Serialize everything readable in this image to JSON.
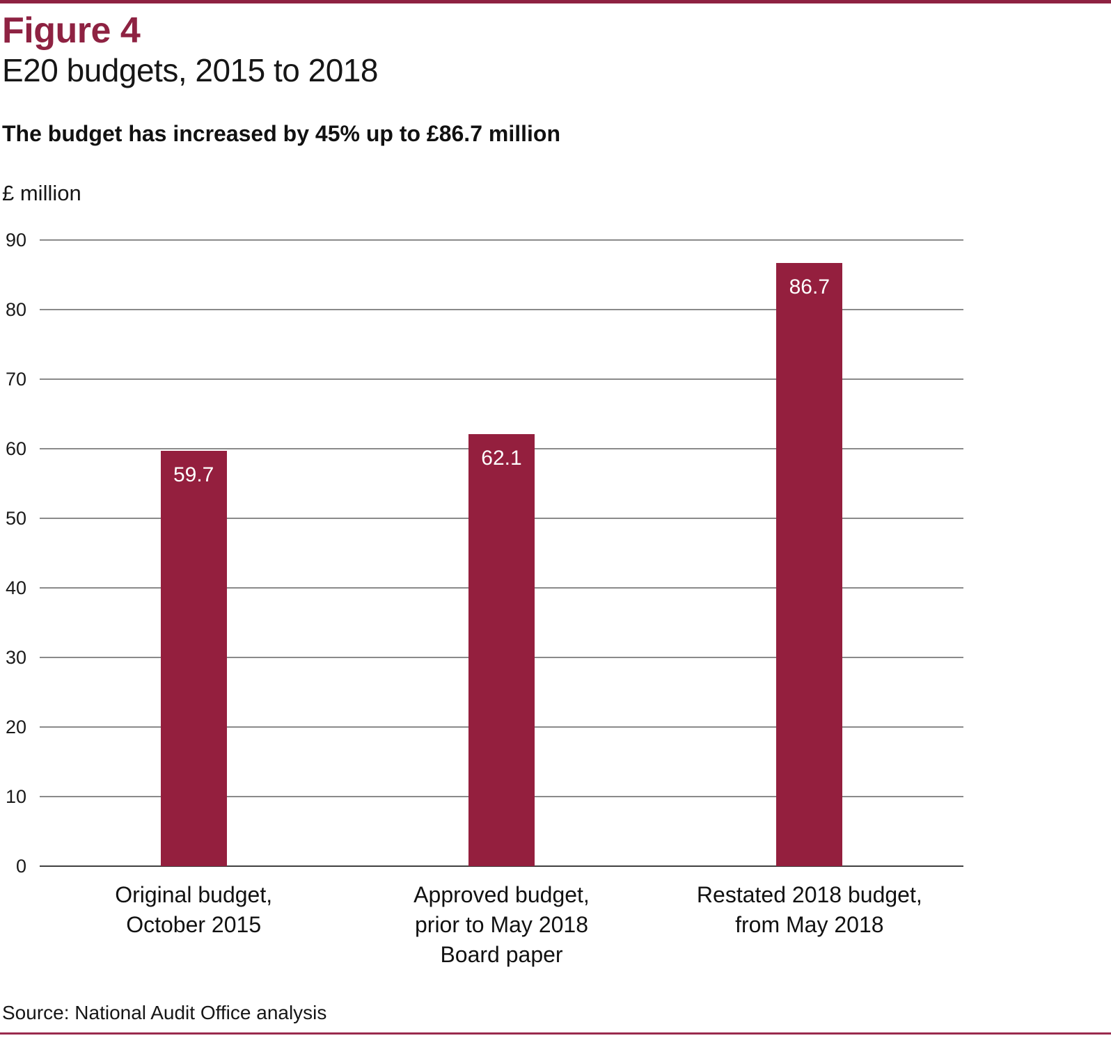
{
  "page": {
    "figure_label": "Figure 4",
    "title": "E20 budgets, 2015 to 2018",
    "statement": "The budget has increased by 45% up to £86.7 million",
    "source": "Source: National Audit Office analysis"
  },
  "colors": {
    "accent_maroon": "#8E2242",
    "bar_fill": "#941F3E",
    "top_rule": "#8E2242",
    "bottom_rule": "#9A2A4E",
    "gridline": "#8A8A8A",
    "axis_line": "#3F3F3F",
    "value_label_text": "#FFFFFF"
  },
  "chart_data": {
    "type": "bar",
    "title": "E20 budgets, 2015 to 2018",
    "xlabel": "",
    "ylabel": "£ million",
    "categories": [
      "Original budget,\nOctober 2015",
      "Approved budget,\nprior to May 2018\nBoard paper",
      "Restated 2018 budget,\nfrom May 2018"
    ],
    "values": [
      59.7,
      62.1,
      86.7
    ],
    "value_labels": [
      "59.7",
      "62.1",
      "86.7"
    ],
    "ylim": [
      0,
      90
    ],
    "ytick_step": 10,
    "yticks": [
      0,
      10,
      20,
      30,
      40,
      50,
      60,
      70,
      80,
      90
    ],
    "grid": "horizontal gridlines on",
    "legend": "none"
  }
}
